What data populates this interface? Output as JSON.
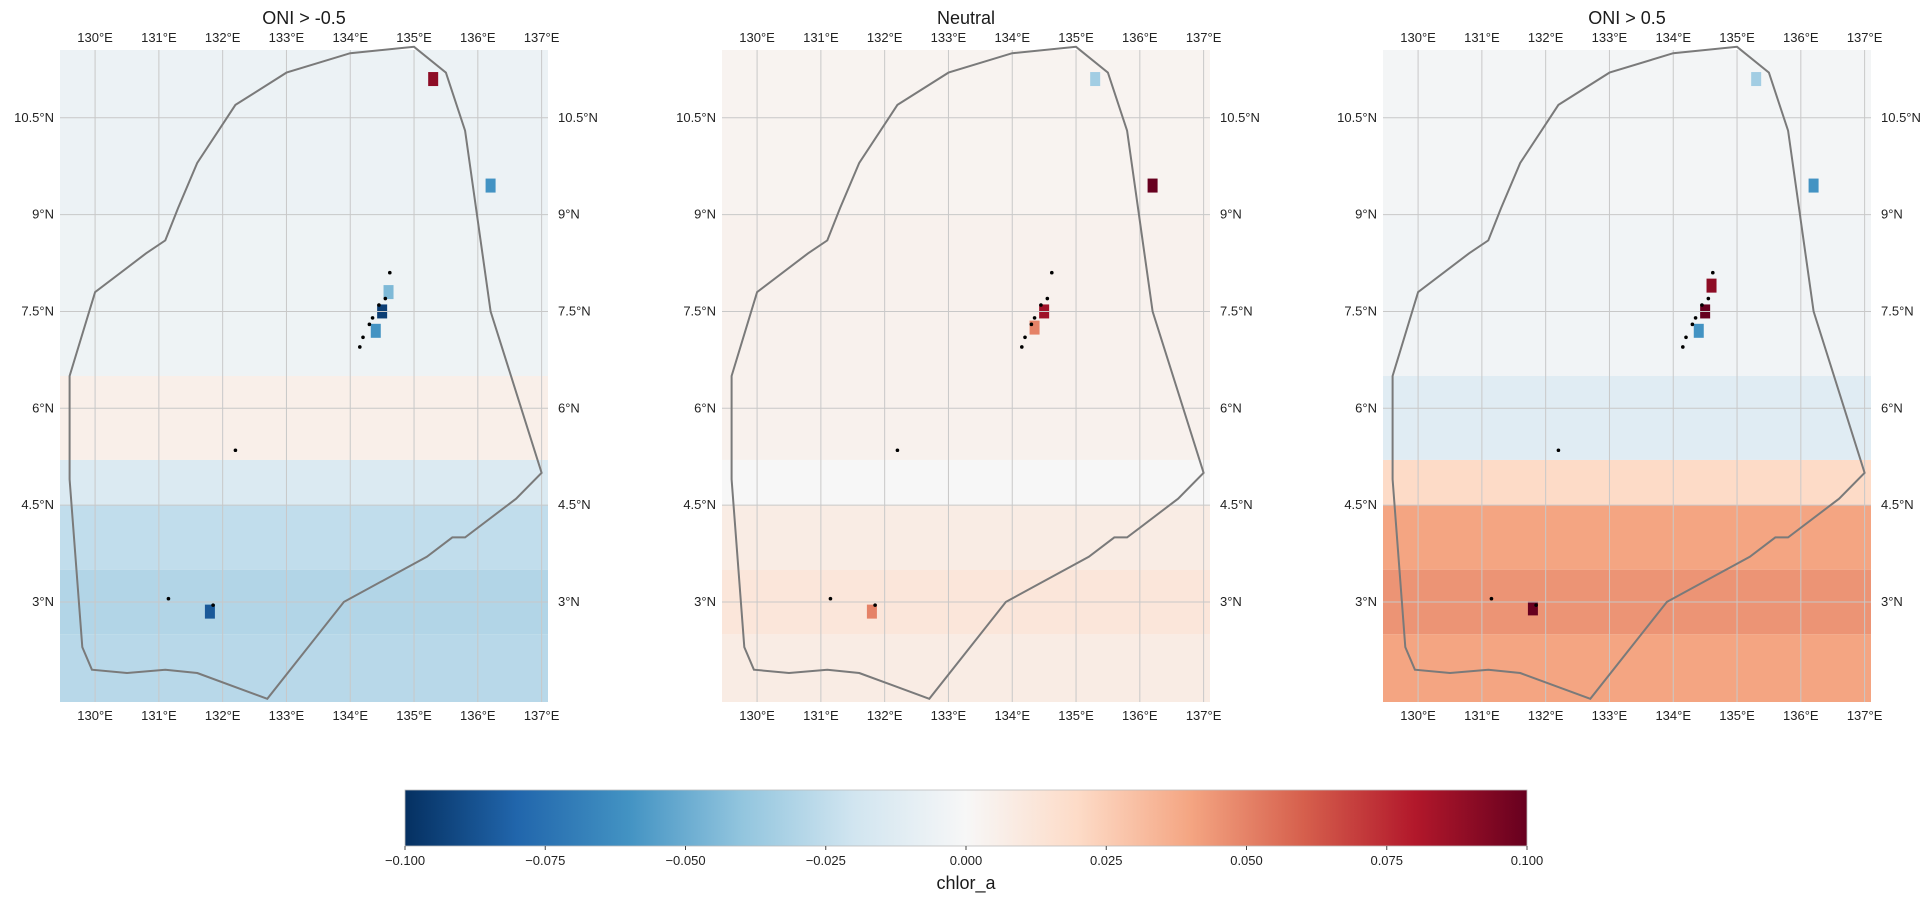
{
  "chart_data": {
    "type": "heatmap",
    "variable": "chlor_a",
    "colormap": "RdBu_r",
    "value_range": [
      -0.1,
      0.1
    ],
    "grid": true,
    "lon_range": [
      129.45,
      137.1
    ],
    "lat_range": [
      1.45,
      11.55
    ],
    "lon_ticks": [
      "130°E",
      "131°E",
      "132°E",
      "133°E",
      "134°E",
      "135°E",
      "136°E",
      "137°E"
    ],
    "lon_tick_values": [
      130,
      131,
      132,
      133,
      134,
      135,
      136,
      137
    ],
    "lat_ticks": [
      "3°N",
      "4.5°N",
      "6°N",
      "7.5°N",
      "9°N",
      "10.5°N"
    ],
    "lat_tick_values": [
      3,
      4.5,
      6,
      7.5,
      9,
      10.5
    ],
    "boundary": [
      [
        131.6,
        1.9
      ],
      [
        132.7,
        1.5
      ],
      [
        133.9,
        3.0
      ],
      [
        135.2,
        3.7
      ],
      [
        135.6,
        4.0
      ],
      [
        135.8,
        4.0
      ],
      [
        136.6,
        4.6
      ],
      [
        137.0,
        5.0
      ],
      [
        136.2,
        7.5
      ],
      [
        135.8,
        10.3
      ],
      [
        135.5,
        11.2
      ],
      [
        135.0,
        11.6
      ],
      [
        134.0,
        11.5
      ],
      [
        133.0,
        11.2
      ],
      [
        132.2,
        10.7
      ],
      [
        131.6,
        9.8
      ],
      [
        131.3,
        9.1
      ],
      [
        131.1,
        8.6
      ],
      [
        130.8,
        8.4
      ],
      [
        130.0,
        7.8
      ],
      [
        129.6,
        6.5
      ],
      [
        129.6,
        4.9
      ],
      [
        129.8,
        2.3
      ],
      [
        129.95,
        1.95
      ],
      [
        130.5,
        1.9
      ],
      [
        131.1,
        1.95
      ]
    ],
    "land_points": [
      [
        134.62,
        8.1
      ],
      [
        134.55,
        7.7
      ],
      [
        134.45,
        7.6
      ],
      [
        134.35,
        7.4
      ],
      [
        134.3,
        7.3
      ],
      [
        134.2,
        7.1
      ],
      [
        134.15,
        6.95
      ],
      [
        132.2,
        5.35
      ],
      [
        131.15,
        3.05
      ],
      [
        131.85,
        2.95
      ]
    ],
    "panels": [
      {
        "title": "ONI > -0.5",
        "anomaly_bands": [
          {
            "lat": [
              1.45,
              2.5
            ],
            "value": -0.028
          },
          {
            "lat": [
              2.5,
              3.5
            ],
            "value": -0.03
          },
          {
            "lat": [
              3.5,
              4.5
            ],
            "value": -0.025
          },
          {
            "lat": [
              4.5,
              5.2
            ],
            "value": -0.015
          },
          {
            "lat": [
              5.2,
              6.5
            ],
            "value": 0.006
          },
          {
            "lat": [
              6.5,
              9.0
            ],
            "value": -0.005
          },
          {
            "lat": [
              9.0,
              11.55
            ],
            "value": -0.006
          }
        ],
        "anomaly_spots": [
          {
            "lon": 134.5,
            "lat": 7.5,
            "value": -0.095
          },
          {
            "lon": 134.4,
            "lat": 7.2,
            "value": -0.06
          },
          {
            "lon": 134.6,
            "lat": 7.8,
            "value": -0.045
          },
          {
            "lon": 131.8,
            "lat": 2.85,
            "value": -0.085
          },
          {
            "lon": 135.3,
            "lat": 11.1,
            "value": 0.09
          },
          {
            "lon": 136.2,
            "lat": 9.45,
            "value": -0.06
          }
        ]
      },
      {
        "title": "Neutral",
        "anomaly_bands": [
          {
            "lat": [
              1.45,
              2.5
            ],
            "value": 0.008
          },
          {
            "lat": [
              2.5,
              3.5
            ],
            "value": 0.012
          },
          {
            "lat": [
              3.5,
              4.5
            ],
            "value": 0.008
          },
          {
            "lat": [
              4.5,
              5.2
            ],
            "value": 0.0
          },
          {
            "lat": [
              5.2,
              6.5
            ],
            "value": 0.004
          },
          {
            "lat": [
              6.5,
              9.0
            ],
            "value": 0.004
          },
          {
            "lat": [
              9.0,
              11.55
            ],
            "value": 0.003
          }
        ],
        "anomaly_spots": [
          {
            "lon": 134.5,
            "lat": 7.5,
            "value": 0.085
          },
          {
            "lon": 134.35,
            "lat": 7.25,
            "value": 0.05
          },
          {
            "lon": 131.8,
            "lat": 2.85,
            "value": 0.05
          },
          {
            "lon": 135.3,
            "lat": 11.1,
            "value": -0.035
          },
          {
            "lon": 136.2,
            "lat": 9.45,
            "value": 0.1
          }
        ]
      },
      {
        "title": "ONI > 0.5",
        "anomaly_bands": [
          {
            "lat": [
              1.45,
              2.5
            ],
            "value": 0.04
          },
          {
            "lat": [
              2.5,
              3.5
            ],
            "value": 0.045
          },
          {
            "lat": [
              3.5,
              4.5
            ],
            "value": 0.04
          },
          {
            "lat": [
              4.5,
              5.2
            ],
            "value": 0.02
          },
          {
            "lat": [
              5.2,
              6.5
            ],
            "value": -0.012
          },
          {
            "lat": [
              6.5,
              9.0
            ],
            "value": -0.003
          },
          {
            "lat": [
              9.0,
              11.55
            ],
            "value": -0.002
          }
        ],
        "anomaly_spots": [
          {
            "lon": 134.5,
            "lat": 7.5,
            "value": 0.1
          },
          {
            "lon": 134.4,
            "lat": 7.2,
            "value": -0.06
          },
          {
            "lon": 134.6,
            "lat": 7.9,
            "value": 0.09
          },
          {
            "lon": 131.8,
            "lat": 2.9,
            "value": 0.1
          },
          {
            "lon": 135.3,
            "lat": 11.1,
            "value": -0.035
          },
          {
            "lon": 136.2,
            "lat": 9.45,
            "value": -0.06
          }
        ]
      }
    ],
    "colorbar": {
      "label": "chlor_a",
      "ticks": [
        "−0.100",
        "−0.075",
        "−0.050",
        "−0.025",
        "0.000",
        "0.025",
        "0.050",
        "0.075",
        "0.100"
      ],
      "tick_values": [
        -0.1,
        -0.075,
        -0.05,
        -0.025,
        0.0,
        0.025,
        0.05,
        0.075,
        0.1
      ]
    },
    "colors": {
      "boundary": "#7a7a7a",
      "gridline": "#c8c8c8",
      "land": "#000000",
      "cmap_stops": [
        "#053061",
        "#2166ac",
        "#4393c3",
        "#92c5de",
        "#d1e5f0",
        "#f7f7f7",
        "#fddbc7",
        "#f4a582",
        "#d6604d",
        "#b2182b",
        "#67001f"
      ]
    }
  }
}
